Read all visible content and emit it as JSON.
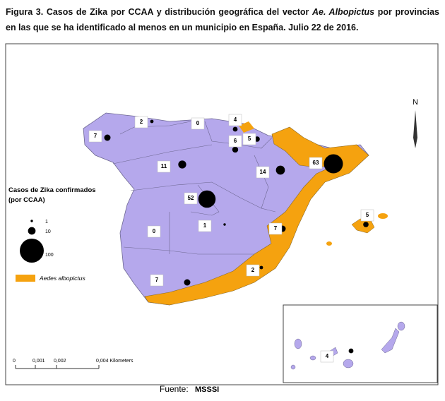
{
  "title": "Figura 3. Casos de Zika por CCAA y distribución geográfica del vector ",
  "title_italic": "Ae. Albopictus",
  "title_rest": " por provincias en las que se ha identificado al menos en un municipio en España. Julio 22 de 2016.",
  "north": "N",
  "legend": {
    "title_line1": "Casos de Zika confirmados",
    "title_line2": "(por CCAA)",
    "sizes": [
      1,
      10,
      100
    ],
    "vector": "Aedes albopictus"
  },
  "scale": {
    "labels": [
      "0",
      "0,001",
      "0,002",
      "0,004 Kilometers"
    ]
  },
  "regions": [
    {
      "cases": 7
    },
    {
      "cases": 2
    },
    {
      "cases": 0
    },
    {
      "cases": 4
    },
    {
      "cases": 6
    },
    {
      "cases": 5
    },
    {
      "cases": 11
    },
    {
      "cases": 14
    },
    {
      "cases": 63
    },
    {
      "cases": 52
    },
    {
      "cases": 1
    },
    {
      "cases": 0
    },
    {
      "cases": 7
    },
    {
      "cases": 2
    },
    {
      "cases": 7
    },
    {
      "cases": 5
    },
    {
      "cases": 4
    }
  ],
  "source_label": "Fuente: ",
  "source": "MSSSI"
}
